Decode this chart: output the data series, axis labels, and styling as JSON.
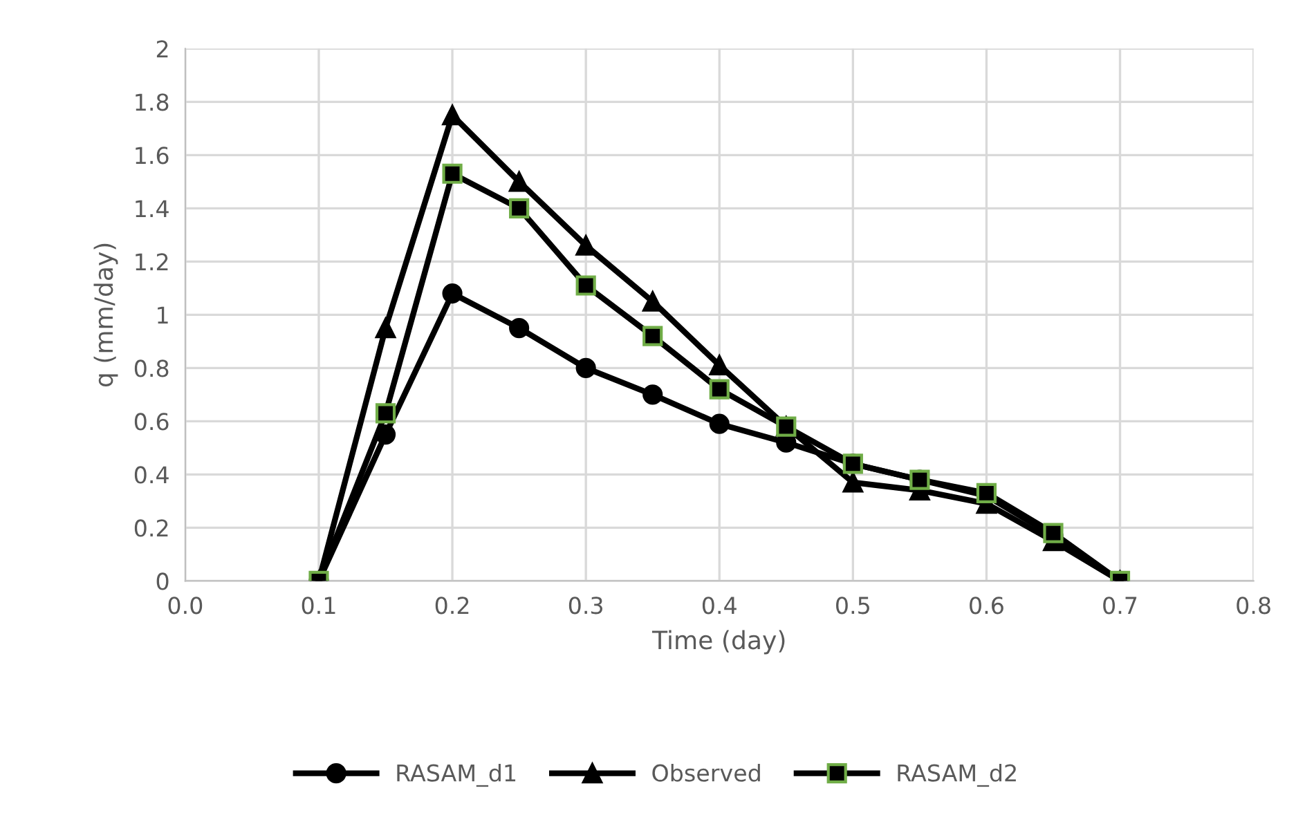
{
  "chart_data": {
    "type": "line",
    "xlabel": "Time (day)",
    "ylabel": "q (mm/day)",
    "x": [
      0.1,
      0.15,
      0.2,
      0.25,
      0.3,
      0.35,
      0.4,
      0.45,
      0.5,
      0.55,
      0.6,
      0.65,
      0.7
    ],
    "series": [
      {
        "name": "RASAM_d1",
        "color": "#000000",
        "marker": "circle",
        "values": [
          0,
          0.55,
          1.08,
          0.95,
          0.8,
          0.7,
          0.59,
          0.52,
          0.44,
          0.38,
          0.32,
          0.17,
          0
        ]
      },
      {
        "name": "Observed",
        "color": "#000000",
        "marker": "triangle",
        "values": [
          0,
          0.95,
          1.75,
          1.5,
          1.26,
          1.05,
          0.81,
          0.58,
          0.37,
          0.34,
          0.29,
          0.15,
          0
        ]
      },
      {
        "name": "RASAM_d2",
        "color": "#000000",
        "marker": "square",
        "values": [
          0,
          0.63,
          1.53,
          1.4,
          1.11,
          0.92,
          0.72,
          0.58,
          0.44,
          0.38,
          0.33,
          0.18,
          0
        ]
      }
    ],
    "xlim": [
      0,
      0.8
    ],
    "xticks": [
      {
        "value": 0,
        "label": "0.0"
      },
      0.1,
      0.2,
      0.3,
      0.4,
      0.5,
      0.6,
      0.7,
      0.8
    ],
    "ylim": [
      0,
      2
    ],
    "yticks": [
      0,
      0.2,
      0.4,
      0.6,
      0.8,
      1,
      1.2,
      1.4,
      1.6,
      1.8,
      2
    ],
    "grid": true,
    "legend": "bottom",
    "line_style": "solid"
  }
}
